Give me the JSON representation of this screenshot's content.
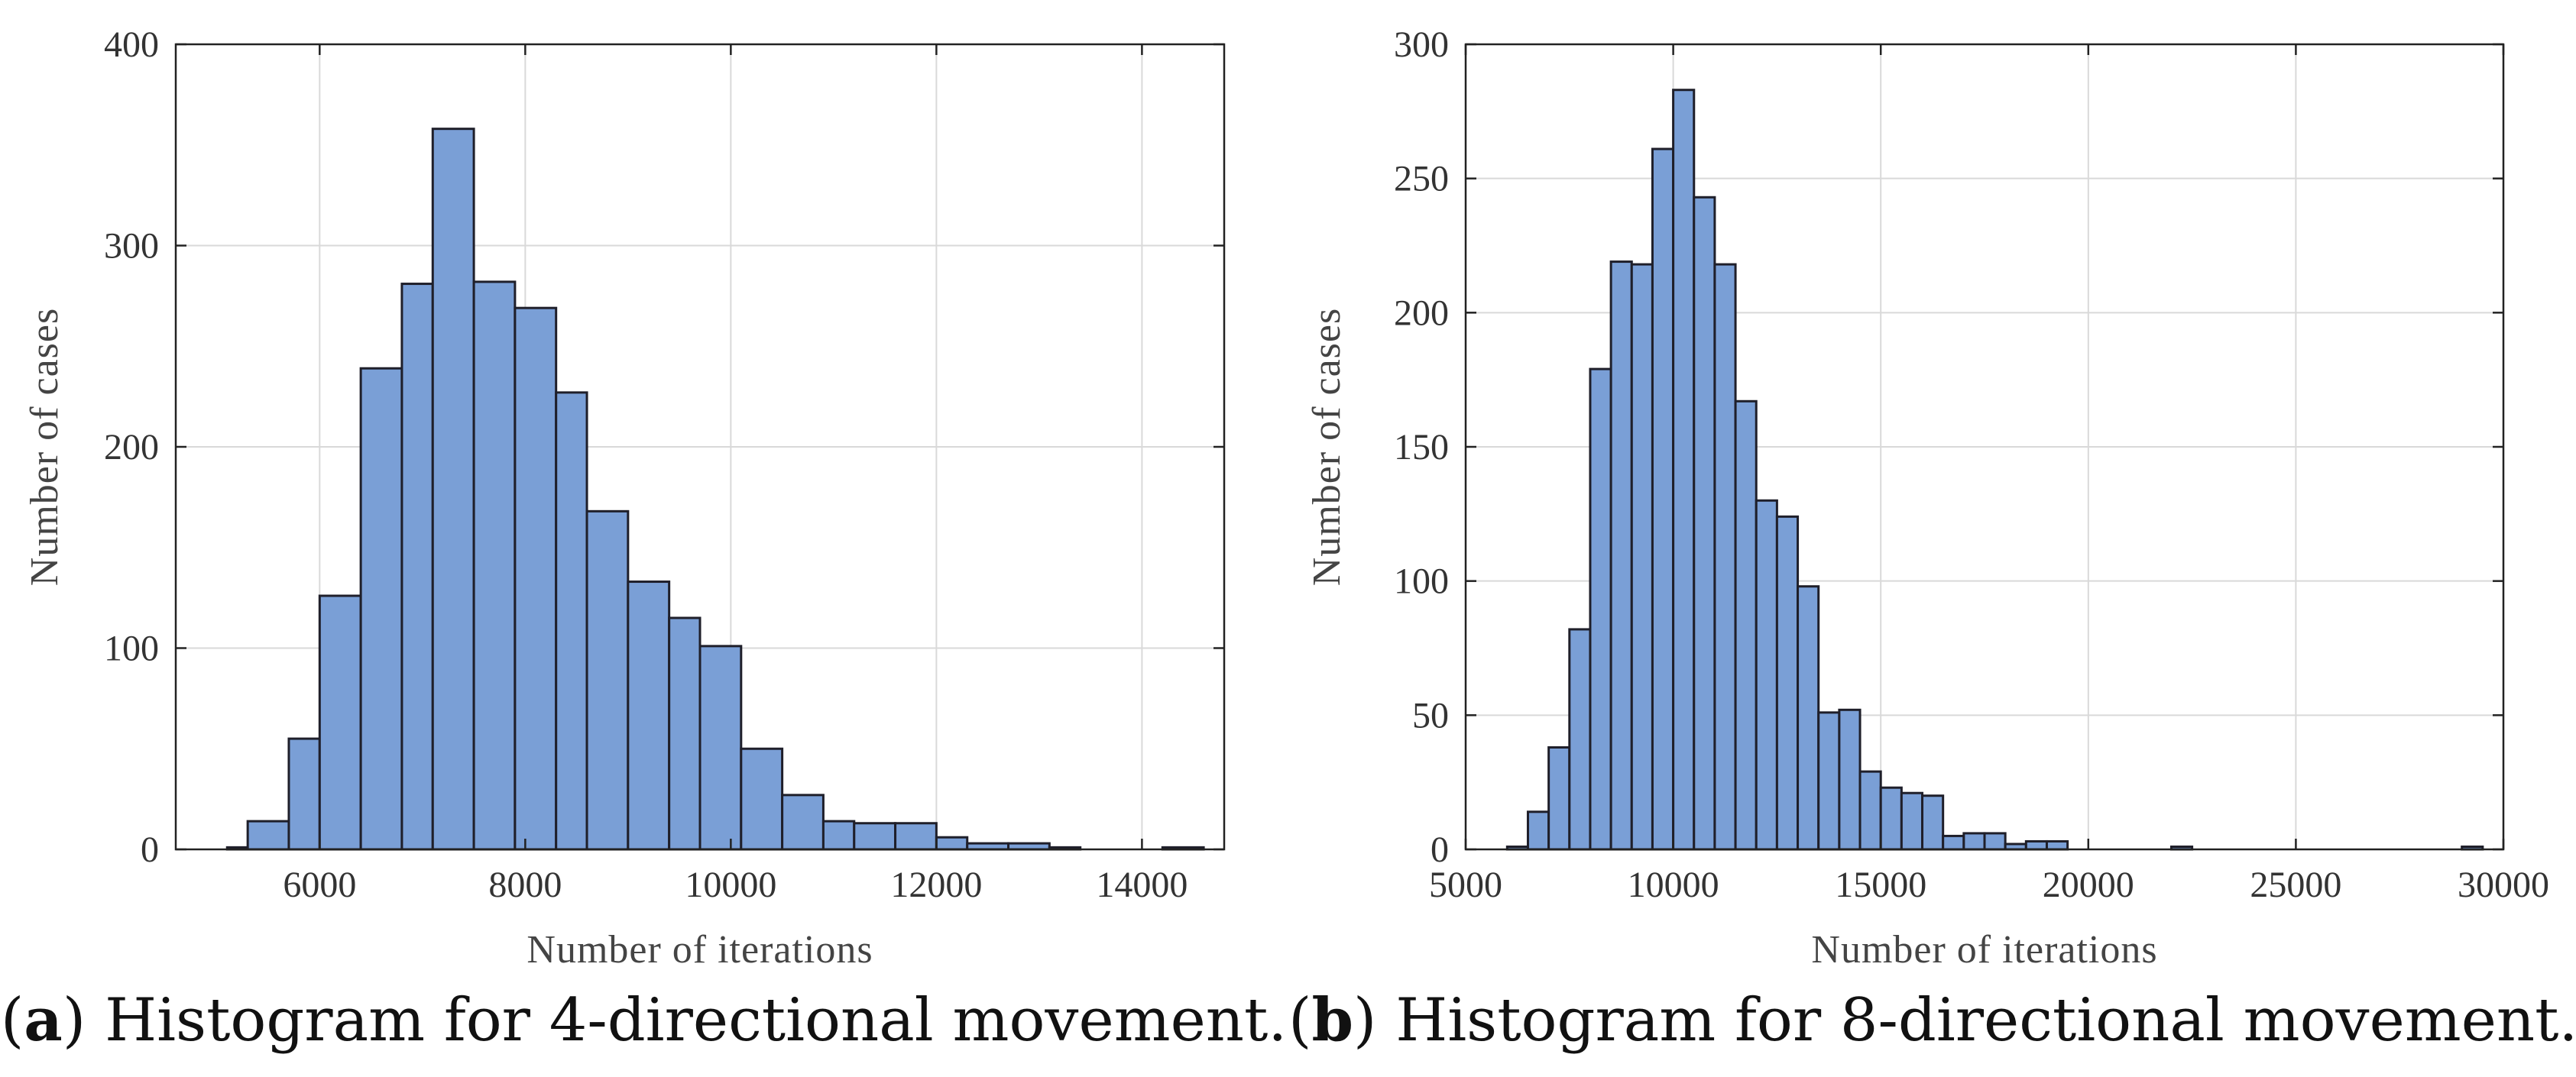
{
  "chart_data": [
    {
      "type": "bar",
      "title": "",
      "xlabel": "Number of iterations",
      "ylabel": "Number of cases",
      "xlim": [
        4600,
        14800
      ],
      "ylim": [
        0,
        400
      ],
      "xticks": [
        6000,
        8000,
        10000,
        12000,
        14000
      ],
      "yticks": [
        0,
        100,
        200,
        300,
        400
      ],
      "grid": true,
      "bar_color": "#7a9fd6",
      "bins": [
        {
          "x0": 5100,
          "x1": 5300,
          "value": 1
        },
        {
          "x0": 5300,
          "x1": 5700,
          "value": 14
        },
        {
          "x0": 5700,
          "x1": 6000,
          "value": 55
        },
        {
          "x0": 6000,
          "x1": 6400,
          "value": 126
        },
        {
          "x0": 6400,
          "x1": 6800,
          "value": 239
        },
        {
          "x0": 6800,
          "x1": 7100,
          "value": 281
        },
        {
          "x0": 7100,
          "x1": 7500,
          "value": 358
        },
        {
          "x0": 7500,
          "x1": 7900,
          "value": 282
        },
        {
          "x0": 7900,
          "x1": 8300,
          "value": 269
        },
        {
          "x0": 8300,
          "x1": 8600,
          "value": 227
        },
        {
          "x0": 8600,
          "x1": 9000,
          "value": 168
        },
        {
          "x0": 9000,
          "x1": 9400,
          "value": 133
        },
        {
          "x0": 9400,
          "x1": 9700,
          "value": 115
        },
        {
          "x0": 9700,
          "x1": 10100,
          "value": 101
        },
        {
          "x0": 10100,
          "x1": 10500,
          "value": 50
        },
        {
          "x0": 10500,
          "x1": 10900,
          "value": 27
        },
        {
          "x0": 10900,
          "x1": 11200,
          "value": 14
        },
        {
          "x0": 11200,
          "x1": 11600,
          "value": 13
        },
        {
          "x0": 11600,
          "x1": 12000,
          "value": 13
        },
        {
          "x0": 12000,
          "x1": 12300,
          "value": 6
        },
        {
          "x0": 12300,
          "x1": 12700,
          "value": 3
        },
        {
          "x0": 12700,
          "x1": 13100,
          "value": 3
        },
        {
          "x0": 13100,
          "x1": 13400,
          "value": 1
        },
        {
          "x0": 14200,
          "x1": 14600,
          "value": 1
        }
      ]
    },
    {
      "type": "bar",
      "title": "",
      "xlabel": "Number of iterations",
      "ylabel": "Number of cases",
      "xlim": [
        5000,
        30000
      ],
      "ylim": [
        0,
        300
      ],
      "xticks": [
        5000,
        10000,
        15000,
        20000,
        25000,
        30000
      ],
      "yticks": [
        0,
        50,
        100,
        150,
        200,
        250,
        300
      ],
      "grid": true,
      "bar_color": "#7a9fd6",
      "bins": [
        {
          "x0": 6000,
          "x1": 6500,
          "value": 1
        },
        {
          "x0": 6500,
          "x1": 7000,
          "value": 14
        },
        {
          "x0": 7000,
          "x1": 7500,
          "value": 38
        },
        {
          "x0": 7500,
          "x1": 8000,
          "value": 82
        },
        {
          "x0": 8000,
          "x1": 8500,
          "value": 179
        },
        {
          "x0": 8500,
          "x1": 9000,
          "value": 219
        },
        {
          "x0": 9000,
          "x1": 9500,
          "value": 218
        },
        {
          "x0": 9500,
          "x1": 10000,
          "value": 261
        },
        {
          "x0": 10000,
          "x1": 10500,
          "value": 283
        },
        {
          "x0": 10500,
          "x1": 11000,
          "value": 243
        },
        {
          "x0": 11000,
          "x1": 11500,
          "value": 218
        },
        {
          "x0": 11500,
          "x1": 12000,
          "value": 167
        },
        {
          "x0": 12000,
          "x1": 12500,
          "value": 130
        },
        {
          "x0": 12500,
          "x1": 13000,
          "value": 124
        },
        {
          "x0": 13000,
          "x1": 13500,
          "value": 98
        },
        {
          "x0": 13500,
          "x1": 14000,
          "value": 51
        },
        {
          "x0": 14000,
          "x1": 14500,
          "value": 52
        },
        {
          "x0": 14500,
          "x1": 15000,
          "value": 29
        },
        {
          "x0": 15000,
          "x1": 15500,
          "value": 23
        },
        {
          "x0": 15500,
          "x1": 16000,
          "value": 21
        },
        {
          "x0": 16000,
          "x1": 16500,
          "value": 20
        },
        {
          "x0": 16500,
          "x1": 17000,
          "value": 5
        },
        {
          "x0": 17000,
          "x1": 17500,
          "value": 6
        },
        {
          "x0": 17500,
          "x1": 18000,
          "value": 6
        },
        {
          "x0": 18000,
          "x1": 18500,
          "value": 2
        },
        {
          "x0": 18500,
          "x1": 19000,
          "value": 3
        },
        {
          "x0": 19000,
          "x1": 19500,
          "value": 3
        },
        {
          "x0": 22000,
          "x1": 22500,
          "value": 1
        },
        {
          "x0": 29000,
          "x1": 29500,
          "value": 1
        }
      ]
    }
  ],
  "captions": [
    {
      "tag": "a",
      "text": "Histogram for 4-directional movement."
    },
    {
      "tag": "b",
      "text": "Histogram for 8-directional movement."
    }
  ]
}
